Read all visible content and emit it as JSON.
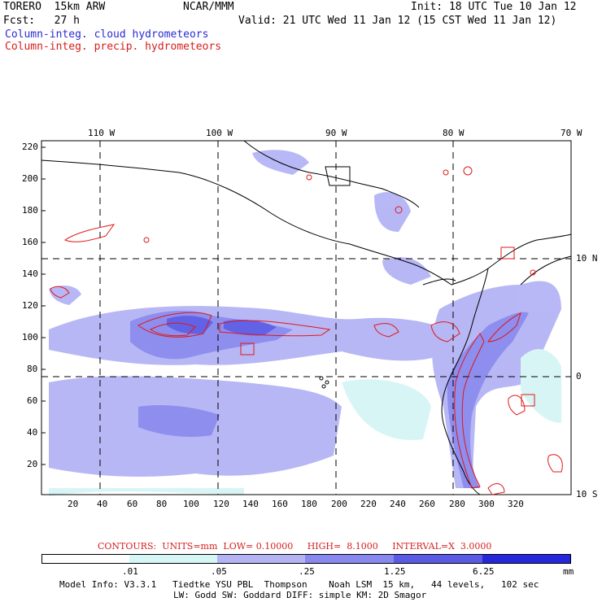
{
  "header": {
    "model": "TORERO  15km ARW",
    "org": "NCAR/MMM",
    "init": "Init: 18 UTC Tue 10 Jan 12",
    "fcst": "Fcst:   27 h",
    "valid": "Valid: 21 UTC Wed 11 Jan 12 (15 CST Wed 11 Jan 12)",
    "legend_blue": "Column-integ. cloud hydrometeors",
    "legend_red": "Column-integ. precip. hydrometeors"
  },
  "map": {
    "top_lon_labels": [
      "110 W",
      "100 W",
      "90 W",
      "80 W",
      "70 W"
    ],
    "right_lat_labels": [
      "10 N",
      "0",
      "10 S"
    ],
    "left_ticks": [
      "220",
      "200",
      "180",
      "160",
      "140",
      "120",
      "100",
      "80",
      "60",
      "40",
      "20"
    ],
    "bottom_ticks": [
      "20",
      "40",
      "60",
      "80",
      "100",
      "120",
      "140",
      "160",
      "180",
      "200",
      "220",
      "240",
      "260",
      "280",
      "300",
      "320"
    ]
  },
  "contours": {
    "line": "CONTOURS:  UNITS=mm  LOW= 0.10000     HIGH=  8.1000     INTERVAL=X  3.0000"
  },
  "colorbar": {
    "labels": [
      ".01",
      ".05",
      ".25",
      "1.25",
      "6.25",
      "mm"
    ],
    "colors": [
      "#ffffff",
      "#d6f5f5",
      "#b4b4f5",
      "#8888ef",
      "#5a5ae6",
      "#2626dc"
    ]
  },
  "footer": {
    "line1": "Model Info: V3.3.1   Tiedtke YSU PBL  Thompson    Noah LSM  15 km,   44 levels,   102 sec",
    "line2": "LW: Godd SW: Goddard DIFF: simple KM: 2D Smagor"
  }
}
